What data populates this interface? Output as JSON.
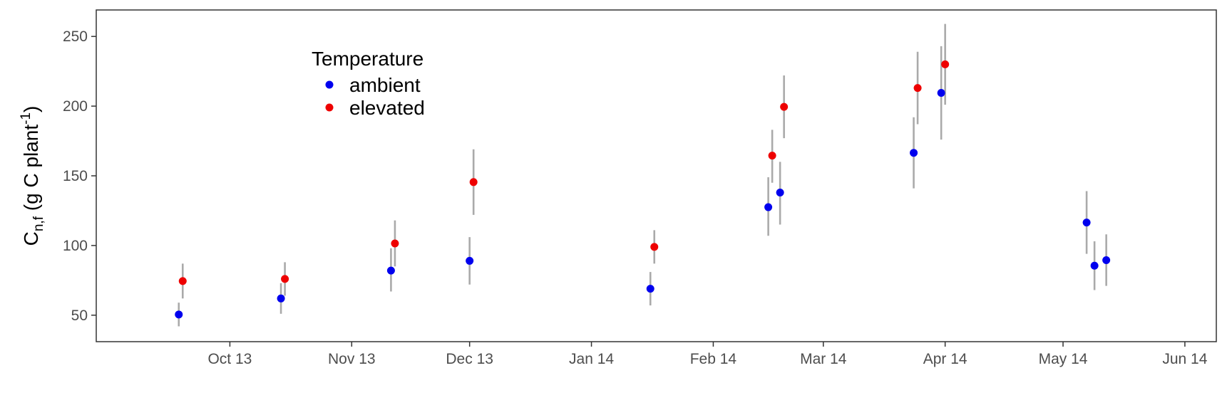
{
  "chart_data": {
    "type": "scatter",
    "title": "",
    "xlabel": "",
    "ylabel": {
      "main": "C",
      "subscript": "n,f",
      "unit_prefix": " (g C plant",
      "superscript": "-1",
      "unit_suffix": ")"
    },
    "x_range": [
      "2013-08-28",
      "2014-06-09"
    ],
    "ylim": [
      31,
      269
    ],
    "y_ticks": [
      50,
      100,
      150,
      200,
      250
    ],
    "x_ticks": [
      {
        "date": "2013-10-01",
        "label": "Oct 13"
      },
      {
        "date": "2013-11-01",
        "label": "Nov 13"
      },
      {
        "date": "2013-12-01",
        "label": "Dec 13"
      },
      {
        "date": "2014-01-01",
        "label": "Jan 14"
      },
      {
        "date": "2014-02-01",
        "label": "Feb 14"
      },
      {
        "date": "2014-03-01",
        "label": "Mar 14"
      },
      {
        "date": "2014-04-01",
        "label": "Apr 14"
      },
      {
        "date": "2014-05-01",
        "label": "May 14"
      },
      {
        "date": "2014-06-01",
        "label": "Jun 14"
      }
    ],
    "grid": false,
    "legend": {
      "title": "Temperature",
      "position": "top-left inside"
    },
    "errorbar_color": "#aaaaaa",
    "series": [
      {
        "name": "ambient",
        "color": "#0000ee",
        "points": [
          {
            "x": "2013-09-18",
            "y": 50.5,
            "low": 42,
            "high": 59
          },
          {
            "x": "2013-10-14",
            "y": 62,
            "low": 51,
            "high": 73
          },
          {
            "x": "2013-11-11",
            "y": 82,
            "low": 67,
            "high": 98
          },
          {
            "x": "2013-12-01",
            "y": 89,
            "low": 72,
            "high": 106
          },
          {
            "x": "2014-01-16",
            "y": 69,
            "low": 57,
            "high": 81
          },
          {
            "x": "2014-02-15",
            "y": 127.5,
            "low": 107,
            "high": 149
          },
          {
            "x": "2014-02-18",
            "y": 138,
            "low": 115,
            "high": 160
          },
          {
            "x": "2014-03-24",
            "y": 166.5,
            "low": 141,
            "high": 192
          },
          {
            "x": "2014-03-31",
            "y": 209.5,
            "low": 176,
            "high": 243
          },
          {
            "x": "2014-05-07",
            "y": 116.5,
            "low": 94,
            "high": 139
          },
          {
            "x": "2014-05-09",
            "y": 85.5,
            "low": 68,
            "high": 103
          },
          {
            "x": "2014-05-12",
            "y": 89.5,
            "low": 71,
            "high": 108
          }
        ]
      },
      {
        "name": "elevated",
        "color": "#ee0000",
        "points": [
          {
            "x": "2013-09-19",
            "y": 74.5,
            "low": 62,
            "high": 87
          },
          {
            "x": "2013-10-15",
            "y": 76,
            "low": 64,
            "high": 88
          },
          {
            "x": "2013-11-12",
            "y": 101.5,
            "low": 85,
            "high": 118
          },
          {
            "x": "2013-12-02",
            "y": 145.5,
            "low": 122,
            "high": 169
          },
          {
            "x": "2014-01-17",
            "y": 99,
            "low": 87,
            "high": 111
          },
          {
            "x": "2014-02-16",
            "y": 164.5,
            "low": 145,
            "high": 183
          },
          {
            "x": "2014-02-19",
            "y": 199.5,
            "low": 177,
            "high": 222
          },
          {
            "x": "2014-03-25",
            "y": 213,
            "low": 187,
            "high": 239
          },
          {
            "x": "2014-04-01",
            "y": 230,
            "low": 201,
            "high": 259
          }
        ]
      }
    ]
  }
}
